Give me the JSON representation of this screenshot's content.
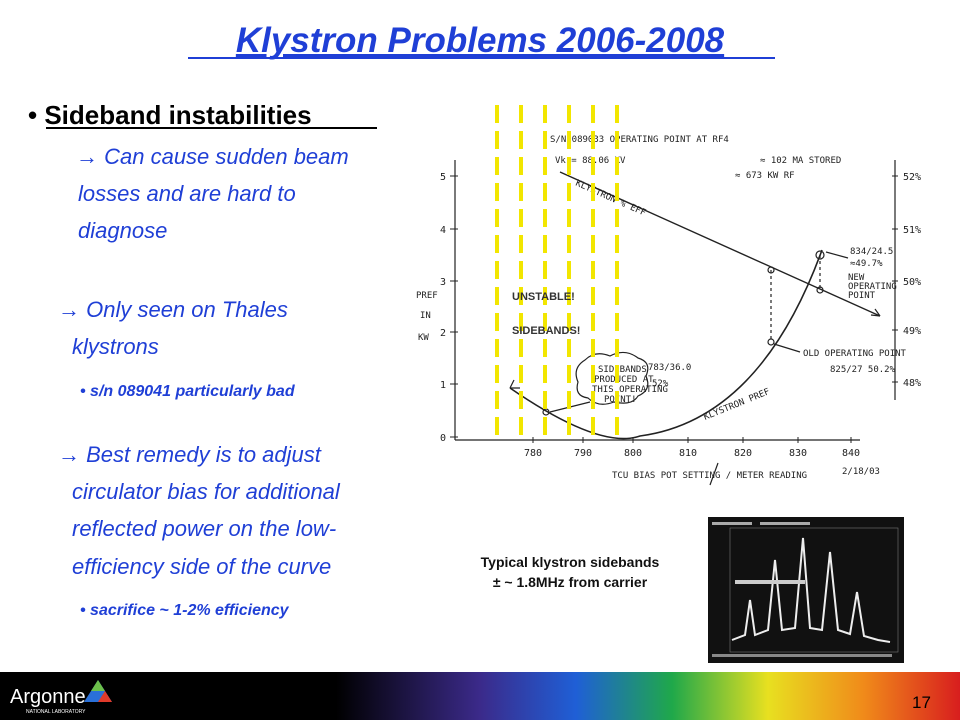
{
  "title": "Klystron Problems 2006-2008",
  "bullets": {
    "heading": "• Sideband instabilities",
    "point1": [
      "→ Can cause sudden beam",
      "losses and are hard to",
      "diagnose"
    ],
    "point2": [
      "→ Only seen on Thales",
      "klystrons"
    ],
    "point2_sub": "• s/n 089041 particularly bad",
    "point3": [
      "→ Best remedy is to adjust",
      "circulator bias for additional",
      "reflected power on the low-",
      "efficiency side of the curve"
    ],
    "point3_sub": "• sacrifice ~ 1-2% efficiency"
  },
  "figure": {
    "heading": "S/N 089033 OPERATING POINT AT RF4",
    "notes": [
      "Vk = 88.06 KV",
      "≈ 102 MA STORED",
      "≈ 673 KW RF"
    ],
    "y_label": [
      "PREF",
      "IN",
      "KW"
    ],
    "y_ticks": [
      "0",
      "1",
      "2",
      "3",
      "4",
      "5"
    ],
    "x_ticks": [
      "780",
      "790",
      "800",
      "810",
      "820",
      "830",
      "840"
    ],
    "right_ticks": [
      "48%",
      "49%",
      "50%",
      "51%",
      "52%"
    ],
    "x_label": "TCU BIAS POT SETTING / METER READING",
    "efficiency_label": "KLYSTRON % EFF",
    "power_label": "KLYSTRON PREF",
    "new_point": [
      "834/24.5",
      "≈49.7%",
      "NEW",
      "OPERATING",
      "POINT"
    ],
    "old_point": [
      "OLD OPERATING POINT",
      "825/27  50.2%"
    ],
    "left_point": [
      "783/36.0",
      "52%"
    ],
    "cloud": [
      "SIDEBANDS",
      "PRODUCED AT",
      "THIS OPERATING",
      "POINT!"
    ],
    "date": "2/18/03",
    "overlay": [
      "UNSTABLE!",
      "SIDEBANDS!"
    ]
  },
  "caption": [
    "Typical klystron sidebands",
    "± ~ 1.8MHz from carrier"
  ],
  "footer": {
    "logo": "Argonne",
    "logo_sub": "NATIONAL LABORATORY",
    "page": "17"
  }
}
